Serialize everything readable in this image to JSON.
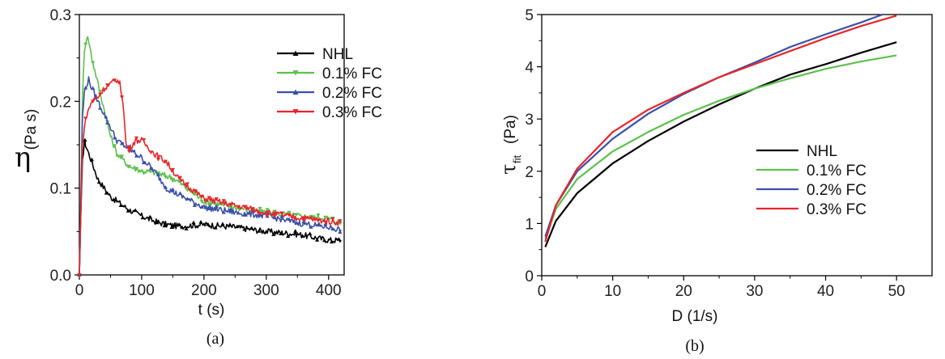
{
  "chart_data": [
    {
      "type": "line",
      "caption": "(a)",
      "xlabel": "t (s)",
      "ylabel_symbol": "η",
      "ylabel_unit": "(Pa s)",
      "xlim": [
        0,
        425
      ],
      "ylim": [
        0,
        0.3
      ],
      "xticks": [
        "0",
        "100",
        "200",
        "300",
        "400"
      ],
      "yticks": [
        "0.0",
        "0.1",
        "0.2",
        "0.3"
      ],
      "legend_position": "upper-right",
      "series": [
        {
          "name": "NHL",
          "color": "#000000",
          "marker": "triangle-up",
          "x": [
            0,
            2,
            5,
            8,
            10,
            20,
            30,
            40,
            50,
            60,
            80,
            100,
            120,
            140,
            160,
            200,
            250,
            300,
            350,
            400,
            420
          ],
          "y": [
            0.0,
            0.06,
            0.13,
            0.155,
            0.15,
            0.13,
            0.11,
            0.1,
            0.09,
            0.085,
            0.075,
            0.068,
            0.062,
            0.058,
            0.056,
            0.058,
            0.055,
            0.05,
            0.047,
            0.04,
            0.04
          ]
        },
        {
          "name": "0.1% FC",
          "color": "#5cc14c",
          "marker": "triangle-down",
          "x": [
            0,
            2,
            5,
            8,
            12,
            15,
            20,
            30,
            40,
            50,
            60,
            80,
            100,
            120,
            150,
            200,
            250,
            300,
            350,
            400,
            420
          ],
          "y": [
            0.0,
            0.07,
            0.2,
            0.26,
            0.275,
            0.27,
            0.25,
            0.22,
            0.19,
            0.16,
            0.14,
            0.125,
            0.12,
            0.118,
            0.112,
            0.085,
            0.078,
            0.072,
            0.068,
            0.065,
            0.06
          ]
        },
        {
          "name": "0.2% FC",
          "color": "#3a4fa8",
          "marker": "triangle-up",
          "x": [
            0,
            2,
            5,
            8,
            12,
            15,
            20,
            30,
            40,
            50,
            60,
            80,
            100,
            120,
            140,
            160,
            200,
            250,
            300,
            350,
            400,
            420
          ],
          "y": [
            0.0,
            0.07,
            0.18,
            0.21,
            0.22,
            0.225,
            0.215,
            0.2,
            0.185,
            0.17,
            0.155,
            0.145,
            0.135,
            0.12,
            0.1,
            0.092,
            0.078,
            0.072,
            0.068,
            0.06,
            0.055,
            0.052
          ]
        },
        {
          "name": "0.3% FC",
          "color": "#e8262a",
          "marker": "triangle-down",
          "x": [
            0,
            2,
            5,
            8,
            12,
            20,
            30,
            40,
            50,
            60,
            65,
            70,
            75,
            80,
            90,
            100,
            120,
            140,
            160,
            200,
            250,
            300,
            350,
            400,
            420
          ],
          "y": [
            0.0,
            0.06,
            0.15,
            0.17,
            0.185,
            0.2,
            0.205,
            0.215,
            0.22,
            0.225,
            0.22,
            0.2,
            0.15,
            0.145,
            0.155,
            0.155,
            0.14,
            0.13,
            0.11,
            0.088,
            0.08,
            0.072,
            0.066,
            0.062,
            0.06
          ]
        }
      ]
    },
    {
      "type": "line",
      "caption": "(b)",
      "xlabel": "D (1/s)",
      "ylabel_symbol": "τ",
      "ylabel_sub": "fit",
      "ylabel_unit": "(Pa)",
      "xlim": [
        0,
        55
      ],
      "ylim": [
        0,
        5
      ],
      "xticks": [
        "0",
        "10",
        "20",
        "30",
        "40",
        "50"
      ],
      "yticks": [
        "0",
        "1",
        "2",
        "3",
        "4",
        "5"
      ],
      "legend_position": "lower-right",
      "series": [
        {
          "name": "NHL",
          "color": "#000000",
          "x": [
            0.5,
            2,
            5,
            10,
            15,
            20,
            25,
            30,
            35,
            40,
            45,
            50
          ],
          "y": [
            0.55,
            1.05,
            1.58,
            2.15,
            2.58,
            2.95,
            3.28,
            3.58,
            3.85,
            4.05,
            4.27,
            4.47
          ]
        },
        {
          "name": "0.1% FC",
          "color": "#5cc14c",
          "x": [
            0.5,
            2,
            5,
            10,
            15,
            20,
            25,
            30,
            35,
            40,
            45,
            50
          ],
          "y": [
            0.7,
            1.28,
            1.85,
            2.38,
            2.75,
            3.08,
            3.35,
            3.58,
            3.78,
            3.96,
            4.1,
            4.22
          ]
        },
        {
          "name": "0.2% FC",
          "color": "#3a4fa8",
          "x": [
            0.5,
            2,
            5,
            10,
            15,
            20,
            25,
            30,
            35,
            40,
            45,
            48
          ],
          "y": [
            0.75,
            1.35,
            2.0,
            2.62,
            3.1,
            3.48,
            3.8,
            4.08,
            4.38,
            4.62,
            4.85,
            5.0
          ]
        },
        {
          "name": "0.3% FC",
          "color": "#e8262a",
          "x": [
            0.5,
            2,
            5,
            10,
            15,
            20,
            25,
            30,
            35,
            40,
            45,
            50
          ],
          "y": [
            0.65,
            1.35,
            2.05,
            2.75,
            3.18,
            3.5,
            3.8,
            4.05,
            4.3,
            4.55,
            4.78,
            4.98
          ]
        }
      ]
    }
  ]
}
